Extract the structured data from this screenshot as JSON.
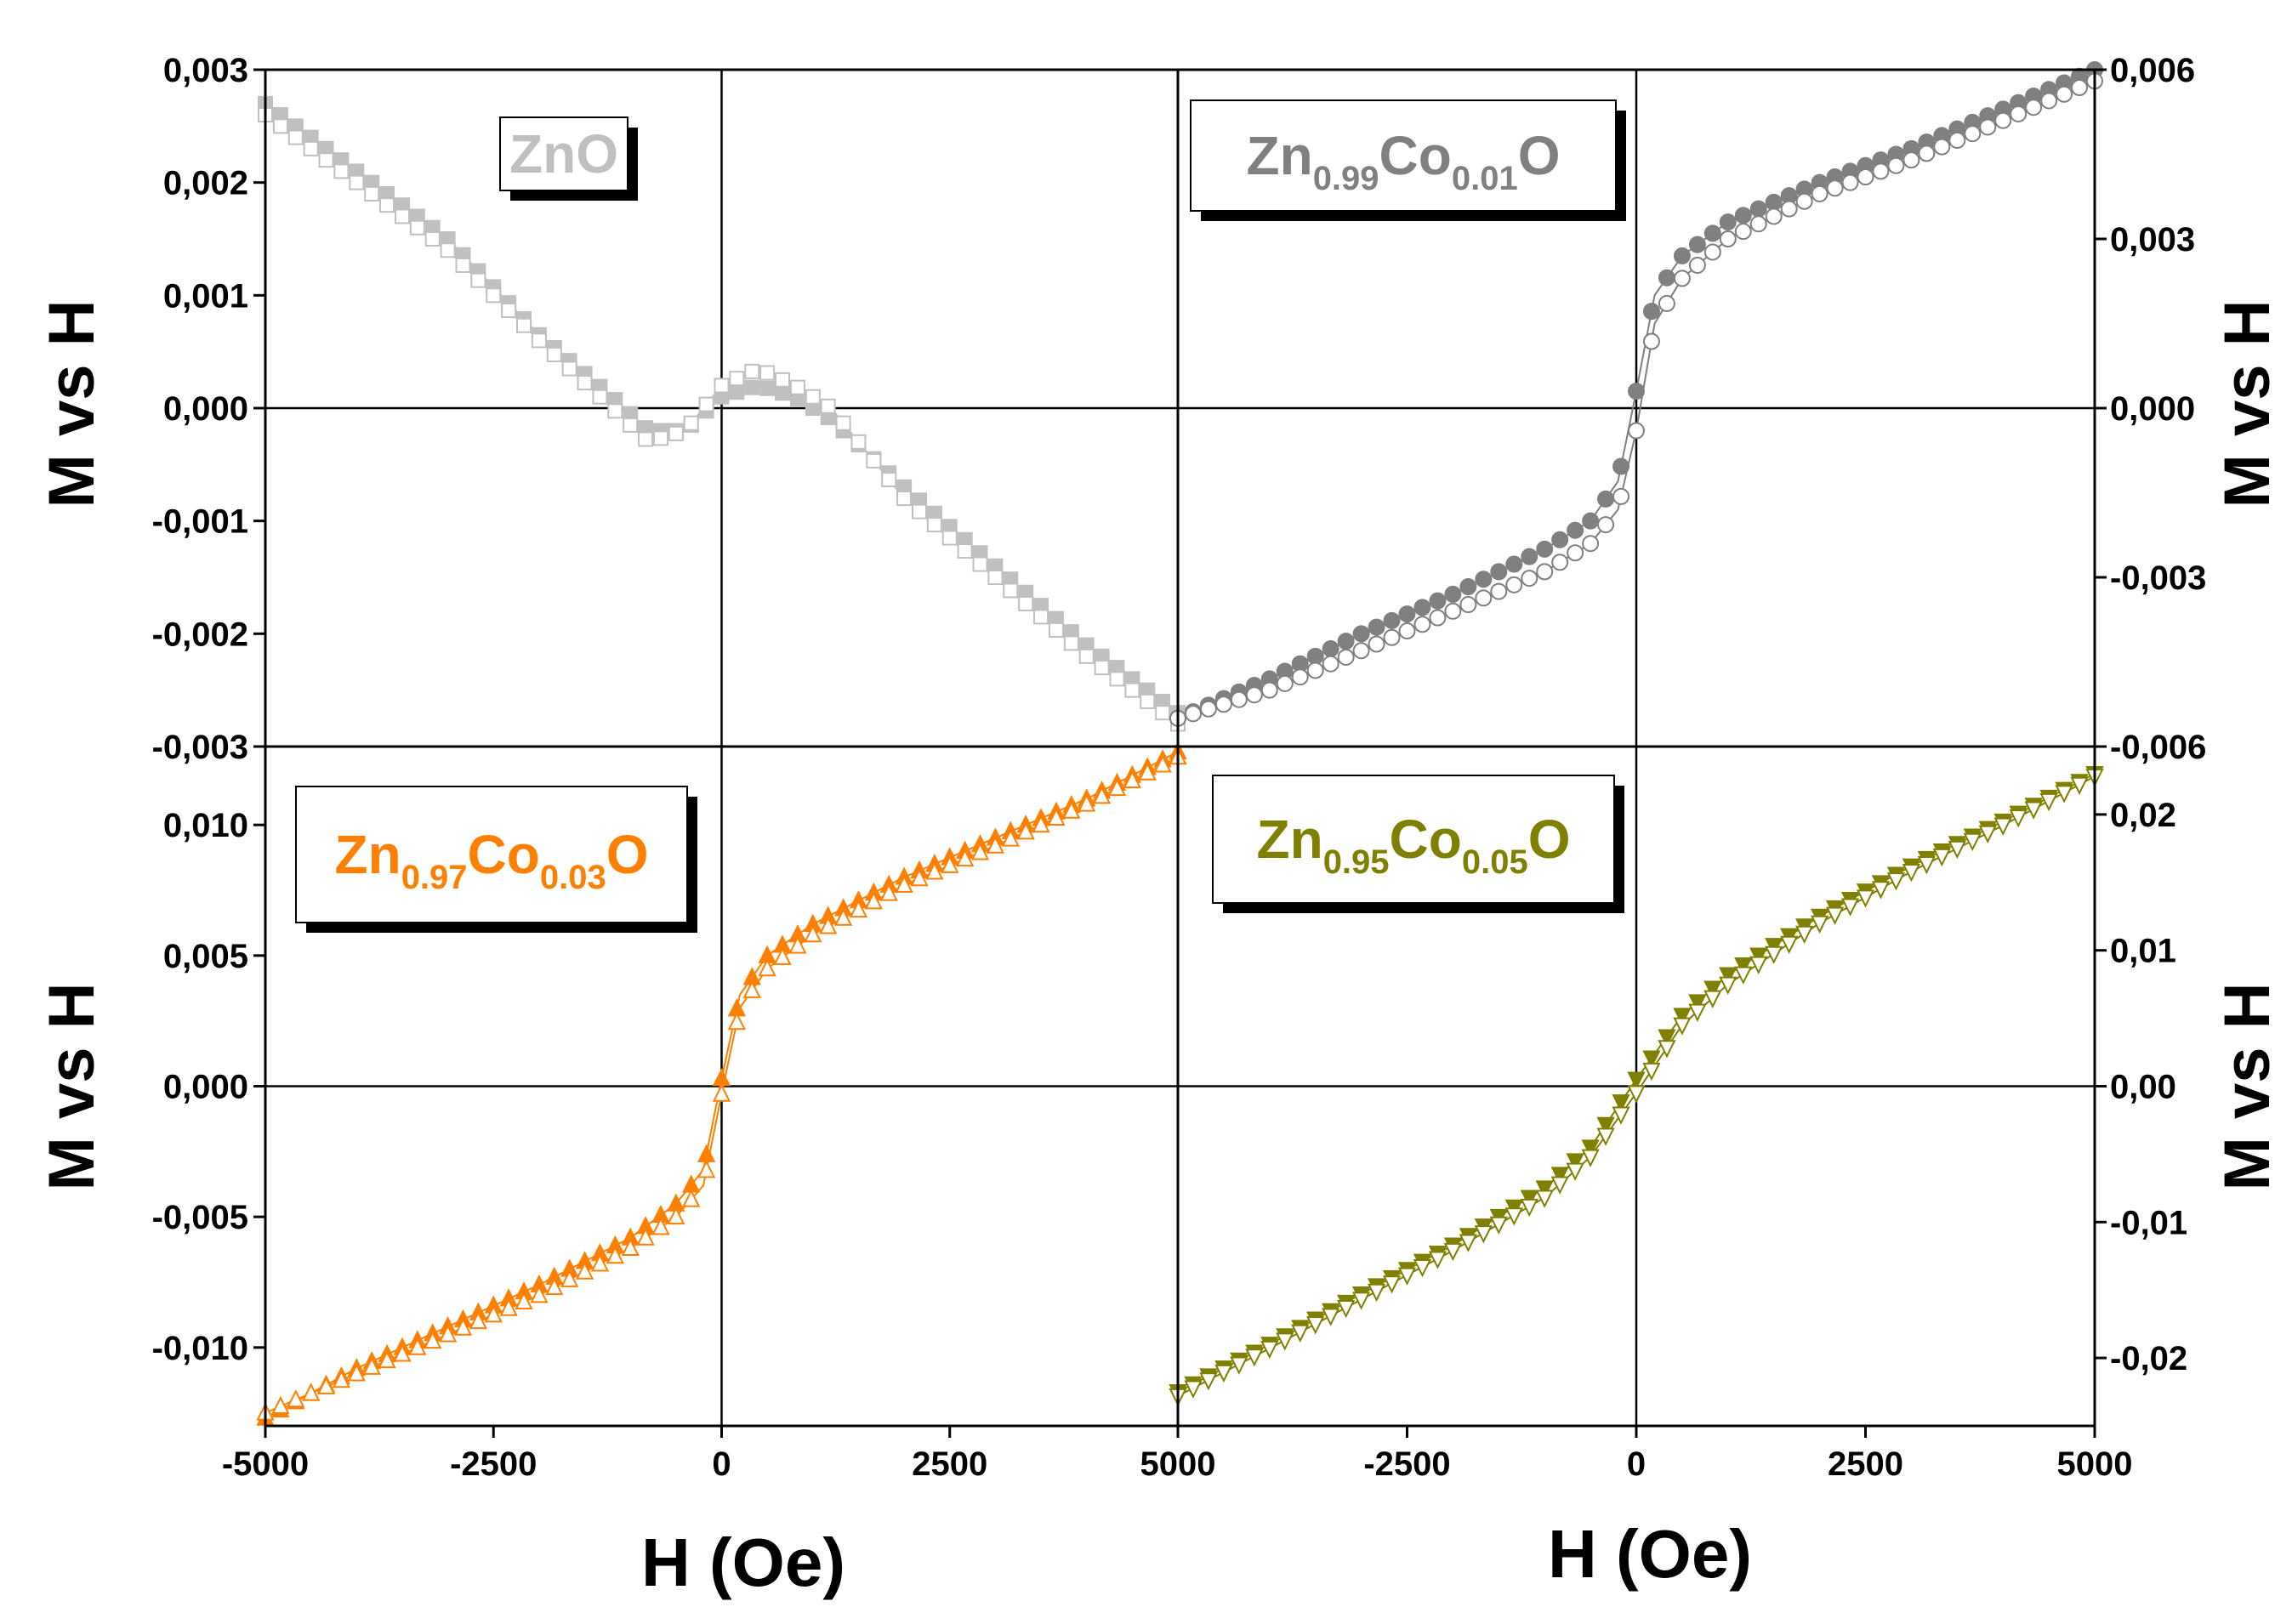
{
  "colors": {
    "frame": "#000000",
    "zno": "#c0c0c0",
    "co001": "#808080",
    "co003": "#ff8000",
    "co005": "#808000"
  },
  "labels": {
    "x_axis": "H (Oe)",
    "y_axis": "M vs H"
  },
  "chart_data": [
    {
      "type": "line",
      "panel": "top-left",
      "legend": {
        "base": "ZnO",
        "parts": []
      },
      "series_color": "zno",
      "marker": "square",
      "xlabel": "H (Oe)",
      "ylabel": "M vs H",
      "xlim": [
        -5000,
        5000
      ],
      "ylim": [
        -0.003,
        0.003
      ],
      "xticks": [
        "-5000",
        "-2500",
        "0",
        "2500",
        "5000"
      ],
      "yticks": [
        {
          "v": 0.003,
          "t": "0,003"
        },
        {
          "v": 0.002,
          "t": "0,002"
        },
        {
          "v": 0.001,
          "t": "0,001"
        },
        {
          "v": 0.0,
          "t": "0,000"
        },
        {
          "v": -0.001,
          "t": "-0,001"
        },
        {
          "v": -0.002,
          "t": "-0,002"
        },
        {
          "v": -0.003,
          "t": "-0,003"
        }
      ],
      "branches": [
        {
          "x": [
            -5000,
            -4000,
            -3000,
            -2000,
            -1200,
            -800,
            -400,
            0,
            400,
            800,
            1200,
            2000,
            3000,
            4000,
            5000
          ],
          "y": [
            0.0027,
            0.0021,
            0.0015,
            0.00065,
            0.0001,
            -0.0002,
            -0.0002,
            0.0001,
            0.0002,
            0.0001,
            -0.0001,
            -0.0007,
            -0.0014,
            -0.0021,
            -0.0027
          ]
        },
        {
          "x": [
            -5000,
            -4000,
            -3000,
            -2000,
            -1200,
            -800,
            -400,
            0,
            400,
            800,
            1200,
            2000,
            3000,
            4000,
            5000
          ],
          "y": [
            0.0026,
            0.002,
            0.0014,
            0.0006,
            0.0,
            -0.0003,
            -0.0002,
            0.0002,
            0.00035,
            0.0002,
            0.0,
            -0.0008,
            -0.0015,
            -0.0022,
            -0.0028
          ]
        }
      ]
    },
    {
      "type": "line",
      "panel": "top-right",
      "legend": {
        "base": "Zn",
        "parts": [
          {
            "sub": "0.99",
            "text": "Co"
          },
          {
            "sub": "0.01",
            "text": "O"
          }
        ]
      },
      "series_color": "co001",
      "marker": "circle",
      "xlabel": "H (Oe)",
      "ylabel": "M vs H",
      "xlim": [
        -5000,
        5000
      ],
      "ylim": [
        -0.006,
        0.006
      ],
      "xticks": [
        "-2500",
        "0",
        "2500",
        "5000"
      ],
      "yticks": [
        {
          "v": 0.006,
          "t": "0,006"
        },
        {
          "v": 0.003,
          "t": "0,003"
        },
        {
          "v": 0.0,
          "t": "0,000"
        },
        {
          "v": -0.003,
          "t": "-0,003"
        },
        {
          "v": -0.006,
          "t": "-0,006"
        }
      ],
      "branches": [
        {
          "x": [
            -5000,
            -4000,
            -3000,
            -2000,
            -1000,
            -500,
            -200,
            0,
            200,
            500,
            1000,
            2000,
            3000,
            4000,
            5000
          ],
          "y": [
            -0.0055,
            -0.0048,
            -0.004,
            -0.0033,
            -0.0025,
            -0.002,
            -0.0013,
            0.0003,
            0.002,
            0.0027,
            0.0033,
            0.004,
            0.0046,
            0.0053,
            0.006
          ]
        },
        {
          "x": [
            -5000,
            -4000,
            -3000,
            -2000,
            -1000,
            -500,
            -200,
            0,
            200,
            500,
            1000,
            2000,
            3000,
            4000,
            5000
          ],
          "y": [
            -0.0055,
            -0.005,
            -0.0043,
            -0.0036,
            -0.0029,
            -0.0024,
            -0.0018,
            -0.0004,
            0.0015,
            0.0023,
            0.003,
            0.0038,
            0.0044,
            0.0051,
            0.0058
          ]
        }
      ]
    },
    {
      "type": "line",
      "panel": "bottom-left",
      "legend": {
        "base": "Zn",
        "parts": [
          {
            "sub": "0.97",
            "text": "Co"
          },
          {
            "sub": "0.03",
            "text": "O"
          }
        ]
      },
      "series_color": "co003",
      "marker": "triangle-up",
      "xlabel": "H (Oe)",
      "ylabel": "M vs H",
      "xlim": [
        -5000,
        5000
      ],
      "ylim": [
        -0.013,
        0.013
      ],
      "xticks": [
        "-5000",
        "-2500",
        "0",
        "2500",
        "5000"
      ],
      "yticks": [
        {
          "v": 0.01,
          "t": "0,010"
        },
        {
          "v": 0.005,
          "t": "0,005"
        },
        {
          "v": 0.0,
          "t": "0,000"
        },
        {
          "v": -0.005,
          "t": "-0,005"
        },
        {
          "v": -0.01,
          "t": "-0,010"
        }
      ],
      "branches": [
        {
          "x": [
            -5000,
            -4000,
            -3000,
            -2000,
            -1000,
            -500,
            -200,
            0,
            200,
            500,
            1000,
            2000,
            3000,
            4000,
            5000
          ],
          "y": [
            -0.0127,
            -0.0108,
            -0.0092,
            -0.0076,
            -0.0058,
            -0.0045,
            -0.0032,
            0.0003,
            0.0035,
            0.005,
            0.0062,
            0.008,
            0.0095,
            0.011,
            0.0128
          ]
        },
        {
          "x": [
            -5000,
            -4000,
            -3000,
            -2000,
            -1000,
            -500,
            -200,
            0,
            200,
            500,
            1000,
            2000,
            3000,
            4000,
            5000
          ],
          "y": [
            -0.0125,
            -0.011,
            -0.0095,
            -0.008,
            -0.0062,
            -0.005,
            -0.0038,
            -0.0003,
            0.003,
            0.0045,
            0.0058,
            0.0077,
            0.0092,
            0.0108,
            0.0126
          ]
        }
      ]
    },
    {
      "type": "line",
      "panel": "bottom-right",
      "legend": {
        "base": "Zn",
        "parts": [
          {
            "sub": "0.95",
            "text": "Co"
          },
          {
            "sub": "0.05",
            "text": "O"
          }
        ]
      },
      "series_color": "co005",
      "marker": "triangle-down",
      "xlabel": "H (Oe)",
      "ylabel": "M vs H",
      "xlim": [
        -5000,
        5000
      ],
      "ylim": [
        -0.025,
        0.025
      ],
      "xticks": [
        "-2500",
        "0",
        "2500",
        "5000"
      ],
      "yticks": [
        {
          "v": 0.02,
          "t": "0,02"
        },
        {
          "v": 0.01,
          "t": "0,01"
        },
        {
          "v": 0.0,
          "t": "0,00"
        },
        {
          "v": -0.01,
          "t": "-0,01"
        },
        {
          "v": -0.02,
          "t": "-0,02"
        }
      ],
      "branches": [
        {
          "x": [
            -5000,
            -4000,
            -3000,
            -2000,
            -1000,
            -500,
            0,
            500,
            1000,
            2000,
            3000,
            4000,
            5000
          ],
          "y": [
            -0.0225,
            -0.019,
            -0.0153,
            -0.0117,
            -0.0075,
            -0.0045,
            0.0005,
            0.0052,
            0.0082,
            0.0125,
            0.0162,
            0.0195,
            0.023
          ]
        },
        {
          "x": [
            -5000,
            -4000,
            -3000,
            -2000,
            -1000,
            -500,
            0,
            500,
            1000,
            2000,
            3000,
            4000,
            5000
          ],
          "y": [
            -0.0228,
            -0.0193,
            -0.0157,
            -0.0121,
            -0.0082,
            -0.0052,
            -0.0005,
            0.0045,
            0.0075,
            0.012,
            0.0158,
            0.0192,
            0.0228
          ]
        }
      ]
    }
  ]
}
